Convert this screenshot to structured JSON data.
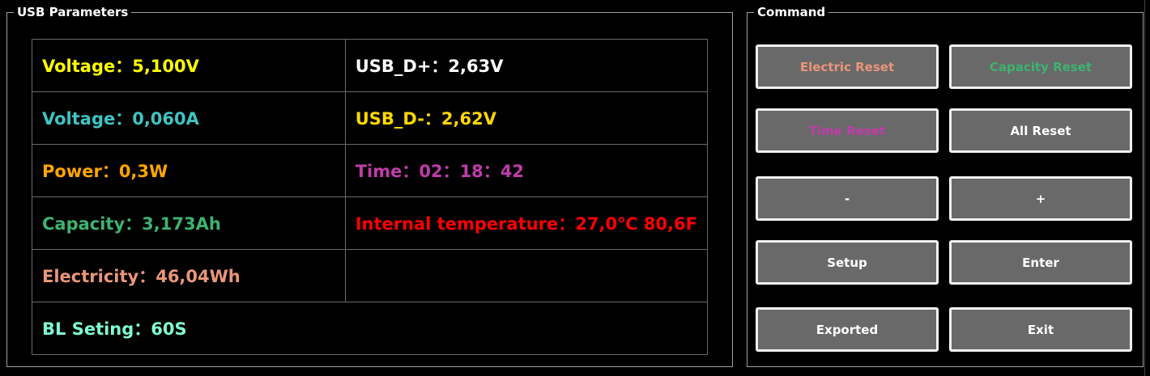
{
  "usb_parameters": {
    "title": "USB Parameters",
    "rows": [
      [
        {
          "text": "Voltage：5,100V",
          "color": "#ffff00"
        },
        {
          "text": "USB_D+：2,63V",
          "color": "#ffffff"
        }
      ],
      [
        {
          "text": "Voltage：0,060A",
          "color": "#3fc4c4"
        },
        {
          "text": "USB_D-：2,62V",
          "color": "#ffd700"
        }
      ],
      [
        {
          "text": "Power：0,3W",
          "color": "#ffa500"
        },
        {
          "text": "Time：02：18：42",
          "color": "#c03ca8"
        }
      ],
      [
        {
          "text": "Capacity：3,173Ah",
          "color": "#3cb371"
        },
        {
          "text": "Internal temperature：27,0℃ 80,6F",
          "color": "#ff0000"
        }
      ],
      [
        {
          "text": "Electricity：46,04Wh",
          "color": "#e9967a"
        },
        {
          "text": "",
          "color": "#ffffff"
        }
      ]
    ],
    "last_row": {
      "text": "BL Seting：60S",
      "color": "#7fffd4"
    }
  },
  "command": {
    "title": "Command",
    "buttons": [
      {
        "label": "Electric Reset",
        "color": "#e9967a"
      },
      {
        "label": "Capacity Reset",
        "color": "#3cb371"
      },
      {
        "label": "Time Reset",
        "color": "#c03ca8"
      },
      {
        "label": "All Reset",
        "color": "#ffffff"
      },
      {
        "label": "-",
        "color": "#ffffff"
      },
      {
        "label": "+",
        "color": "#ffffff"
      },
      {
        "label": "Setup",
        "color": "#ffffff"
      },
      {
        "label": "Enter",
        "color": "#ffffff"
      },
      {
        "label": "Exported",
        "color": "#ffffff"
      },
      {
        "label": "Exit",
        "color": "#ffffff"
      }
    ]
  }
}
